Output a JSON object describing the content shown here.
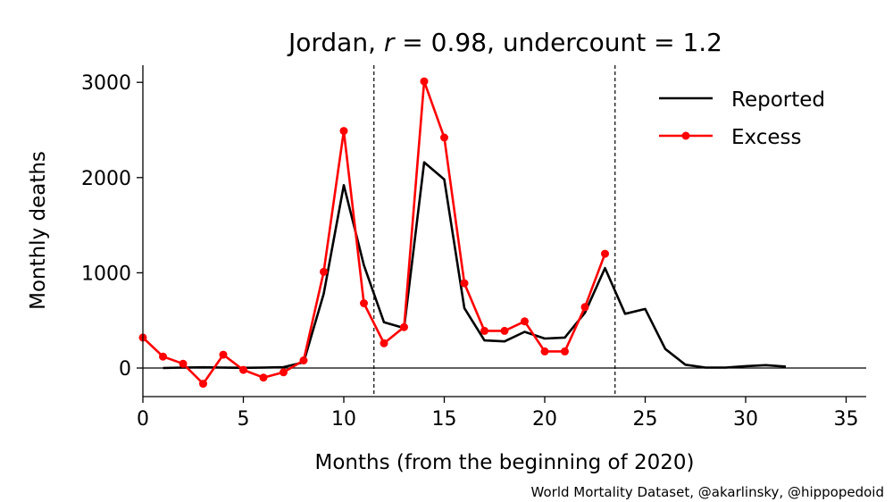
{
  "chart_data": {
    "type": "line",
    "title": {
      "prefix": "Jordan, ",
      "r_symbol": "r",
      "r_text": " = 0.98, undercount = 1.2"
    },
    "xlabel": "Months (from the beginning of 2020)",
    "ylabel": "Monthly deaths",
    "xlim": [
      0,
      36
    ],
    "ylim": [
      -300,
      3180
    ],
    "xticks": [
      0,
      5,
      10,
      15,
      20,
      25,
      30,
      35
    ],
    "yticks": [
      0,
      1000,
      2000,
      3000
    ],
    "vlines": [
      11.5,
      23.5
    ],
    "hline": 0,
    "grid": false,
    "legend_position": "top-right",
    "credit": "World Mortality Dataset, @akarlinsky, @hippopedoid",
    "series": [
      {
        "name": "Reported",
        "color": "#000000",
        "marker": "none",
        "x": [
          1,
          2,
          3,
          4,
          5,
          6,
          7,
          8,
          9,
          10,
          11,
          12,
          13,
          14,
          15,
          16,
          17,
          18,
          19,
          20,
          21,
          22,
          23,
          24,
          25,
          26,
          27,
          28,
          29,
          30,
          31,
          32
        ],
        "values": [
          0,
          5,
          8,
          5,
          2,
          5,
          10,
          60,
          780,
          1920,
          1080,
          480,
          420,
          2160,
          1980,
          630,
          290,
          280,
          380,
          310,
          320,
          580,
          1050,
          570,
          620,
          200,
          35,
          5,
          5,
          20,
          30,
          15
        ]
      },
      {
        "name": "Excess",
        "color": "#ff0000",
        "marker": "circle",
        "x": [
          0,
          1,
          2,
          3,
          4,
          5,
          6,
          7,
          8,
          9,
          10,
          11,
          12,
          13,
          14,
          15,
          16,
          17,
          18,
          19,
          20,
          21,
          22,
          23
        ],
        "values": [
          320,
          120,
          45,
          -165,
          140,
          -20,
          -100,
          -45,
          80,
          1010,
          2490,
          680,
          260,
          430,
          3010,
          2420,
          890,
          390,
          390,
          490,
          175,
          175,
          640,
          1200
        ]
      }
    ]
  }
}
